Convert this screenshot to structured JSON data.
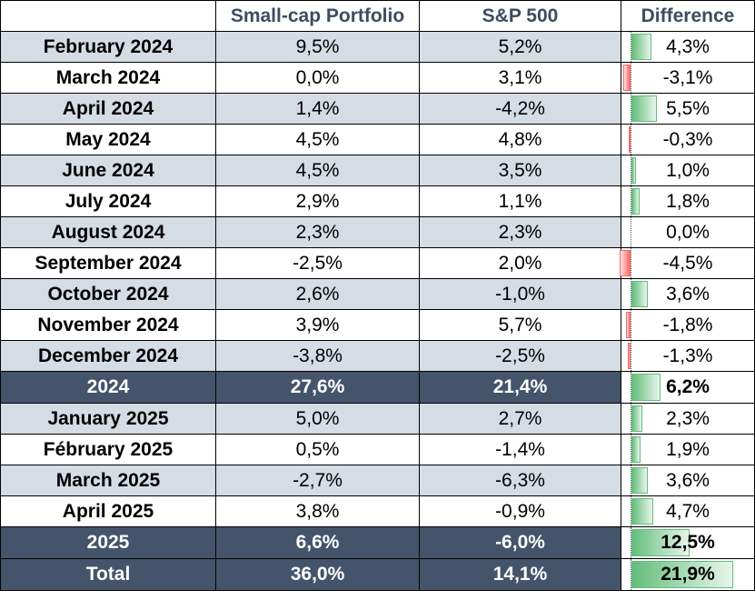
{
  "headers": [
    "",
    "Small-cap Portfolio",
    "S&P 500",
    "Difference"
  ],
  "rows": [
    {
      "label": "February 2024",
      "small": "9,5%",
      "sp": "5,2%",
      "diff": "4,3%",
      "d": 4.3,
      "kind": "month"
    },
    {
      "label": "March 2024",
      "small": "0,0%",
      "sp": "3,1%",
      "diff": "-3,1%",
      "d": -3.1,
      "kind": "month"
    },
    {
      "label": "April 2024",
      "small": "1,4%",
      "sp": "-4,2%",
      "diff": "5,5%",
      "d": 5.5,
      "kind": "month"
    },
    {
      "label": "May 2024",
      "small": "4,5%",
      "sp": "4,8%",
      "diff": "-0,3%",
      "d": -0.3,
      "kind": "month"
    },
    {
      "label": "June 2024",
      "small": "4,5%",
      "sp": "3,5%",
      "diff": "1,0%",
      "d": 1.0,
      "kind": "month"
    },
    {
      "label": "July 2024",
      "small": "2,9%",
      "sp": "1,1%",
      "diff": "1,8%",
      "d": 1.8,
      "kind": "month"
    },
    {
      "label": "August 2024",
      "small": "2,3%",
      "sp": "2,3%",
      "diff": "0,0%",
      "d": 0.0,
      "kind": "month"
    },
    {
      "label": "September 2024",
      "small": "-2,5%",
      "sp": "2,0%",
      "diff": "-4,5%",
      "d": -4.5,
      "kind": "month"
    },
    {
      "label": "October 2024",
      "small": "2,6%",
      "sp": "-1,0%",
      "diff": "3,6%",
      "d": 3.6,
      "kind": "month"
    },
    {
      "label": "November 2024",
      "small": "3,9%",
      "sp": "5,7%",
      "diff": "-1,8%",
      "d": -1.8,
      "kind": "month"
    },
    {
      "label": "December 2024",
      "small": "-3,8%",
      "sp": "-2,5%",
      "diff": "-1,3%",
      "d": -1.3,
      "kind": "month"
    },
    {
      "label": "2024",
      "small": "27,6%",
      "sp": "21,4%",
      "diff": "6,2%",
      "d": 6.2,
      "kind": "summary"
    },
    {
      "label": "January 2025",
      "small": "5,0%",
      "sp": "2,7%",
      "diff": "2,3%",
      "d": 2.3,
      "kind": "month"
    },
    {
      "label": "Fébruary 2025",
      "small": "0,5%",
      "sp": "-1,4%",
      "diff": "1,9%",
      "d": 1.9,
      "kind": "month"
    },
    {
      "label": "March 2025",
      "small": "-2,7%",
      "sp": "-6,3%",
      "diff": "3,6%",
      "d": 3.6,
      "kind": "month"
    },
    {
      "label": "April 2025",
      "small": "3,8%",
      "sp": "-0,9%",
      "diff": "4,7%",
      "d": 4.7,
      "kind": "month"
    },
    {
      "label": "2025",
      "small": "6,6%",
      "sp": "-6,0%",
      "diff": "12,5%",
      "d": 12.5,
      "kind": "summary"
    },
    {
      "label": "Total",
      "small": "36,0%",
      "sp": "14,1%",
      "diff": "21,9%",
      "d": 21.9,
      "kind": "summary"
    }
  ],
  "colors": {
    "header_text": "#3e4c60",
    "summary_bg": "#44546a",
    "shade_bg": "#d6dce4",
    "pos_bar": "#63be7b",
    "neg_bar": "#f8696b"
  }
}
